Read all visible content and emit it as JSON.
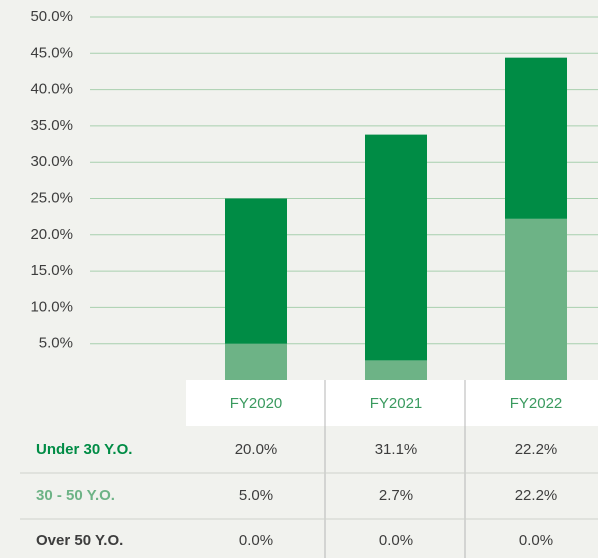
{
  "chart_data": {
    "type": "bar",
    "stacked": true,
    "categories": [
      "FY2020",
      "FY2021",
      "FY2022"
    ],
    "series": [
      {
        "name": "Under 30 Y.O.",
        "color": "#008c45",
        "values": [
          20.0,
          31.1,
          22.2
        ],
        "value_labels": [
          "20.0%",
          "31.1%",
          "22.2%"
        ]
      },
      {
        "name": "30 - 50 Y.O.",
        "color": "#6db386",
        "values": [
          5.0,
          2.7,
          22.2
        ],
        "value_labels": [
          "5.0%",
          "2.7%",
          "22.2%"
        ]
      },
      {
        "name": "Over 50 Y.O.",
        "color": "#3d3d3d",
        "values": [
          0.0,
          0.0,
          0.0
        ],
        "value_labels": [
          "0.0%",
          "0.0%",
          "0.0%"
        ]
      }
    ],
    "ylim": [
      0,
      50
    ],
    "yticks": [
      {
        "value": 5,
        "label": "5.0%"
      },
      {
        "value": 10,
        "label": "10.0%"
      },
      {
        "value": 15,
        "label": "15.0%"
      },
      {
        "value": 20,
        "label": "20.0%"
      },
      {
        "value": 25,
        "label": "25.0%"
      },
      {
        "value": 30,
        "label": "30.0%"
      },
      {
        "value": 35,
        "label": "35.0%"
      },
      {
        "value": 40,
        "label": "40.0%"
      },
      {
        "value": 45,
        "label": "45.0%"
      },
      {
        "value": 50,
        "label": "50.0%"
      }
    ],
    "grid": true
  }
}
